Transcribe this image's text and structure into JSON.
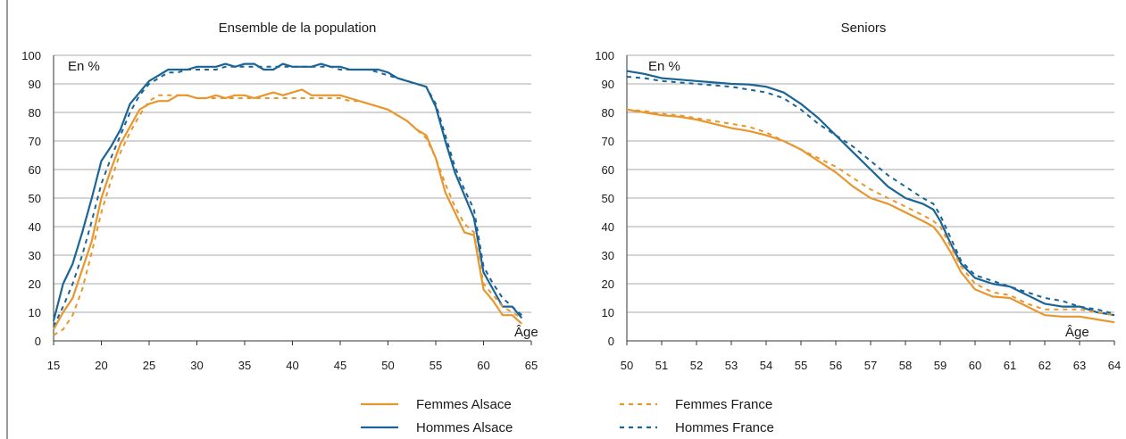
{
  "legend": [
    {
      "label": "Femmes Alsace",
      "color": "#e8962e",
      "dash": false
    },
    {
      "label": "Femmes France",
      "color": "#e8962e",
      "dash": true
    },
    {
      "label": "Hommes Alsace",
      "color": "#1a6496",
      "dash": false
    },
    {
      "label": "Hommes France",
      "color": "#1a6496",
      "dash": true
    }
  ],
  "chart_data": [
    {
      "type": "line",
      "title": "Ensemble de la population",
      "ylabel": "En %",
      "xlabel": "Âge",
      "xlim": [
        15,
        65
      ],
      "ylim": [
        0,
        100
      ],
      "xticks": [
        15,
        20,
        25,
        30,
        35,
        40,
        45,
        50,
        55,
        60,
        65
      ],
      "yticks": [
        0,
        10,
        20,
        30,
        40,
        50,
        60,
        70,
        80,
        90,
        100
      ],
      "grid": "horizontal",
      "series": [
        {
          "name": "Hommes Alsace",
          "color": "#1a6496",
          "dash": false,
          "x": [
            15,
            16,
            17,
            18,
            19,
            20,
            21,
            22,
            23,
            24,
            25,
            26,
            27,
            28,
            29,
            30,
            31,
            32,
            33,
            34,
            35,
            36,
            37,
            38,
            39,
            40,
            41,
            42,
            43,
            44,
            45,
            46,
            47,
            48,
            49,
            50,
            51,
            52,
            53,
            54,
            55,
            56,
            57,
            58,
            59,
            60,
            61,
            62,
            63,
            64
          ],
          "y": [
            7,
            20,
            27,
            38,
            50,
            63,
            68,
            74,
            83,
            87,
            91,
            93,
            95,
            95,
            95,
            96,
            96,
            96,
            97,
            96,
            97,
            97,
            95,
            95,
            97,
            96,
            96,
            96,
            97,
            96,
            96,
            95,
            95,
            95,
            95,
            94,
            92,
            91,
            90,
            89,
            82,
            70,
            59,
            51,
            43,
            24,
            18,
            12,
            12,
            8
          ]
        },
        {
          "name": "Hommes France",
          "color": "#1a6496",
          "dash": true,
          "x": [
            15,
            16,
            17,
            18,
            19,
            20,
            21,
            22,
            23,
            24,
            25,
            26,
            27,
            28,
            29,
            30,
            31,
            32,
            33,
            34,
            35,
            36,
            37,
            38,
            39,
            40,
            41,
            42,
            43,
            44,
            45,
            46,
            47,
            48,
            49,
            50,
            51,
            52,
            53,
            54,
            55,
            56,
            57,
            58,
            59,
            60,
            61,
            62,
            63,
            64
          ],
          "y": [
            5,
            12,
            20,
            30,
            42,
            55,
            64,
            72,
            80,
            86,
            90,
            92,
            94,
            94,
            95,
            95,
            95,
            95,
            96,
            96,
            96,
            96,
            96,
            96,
            96,
            96,
            96,
            96,
            96,
            96,
            95,
            95,
            95,
            95,
            94,
            93,
            92,
            91,
            90,
            89,
            83,
            72,
            61,
            53,
            46,
            26,
            20,
            15,
            12,
            9
          ]
        },
        {
          "name": "Femmes Alsace",
          "color": "#e8962e",
          "dash": false,
          "x": [
            15,
            16,
            17,
            18,
            19,
            20,
            21,
            22,
            23,
            24,
            25,
            26,
            27,
            28,
            29,
            30,
            31,
            32,
            33,
            34,
            35,
            36,
            37,
            38,
            39,
            40,
            41,
            42,
            43,
            44,
            45,
            46,
            47,
            48,
            49,
            50,
            51,
            52,
            53,
            54,
            55,
            56,
            57,
            58,
            59,
            60,
            61,
            62,
            63,
            64
          ],
          "y": [
            4,
            10,
            15,
            25,
            35,
            50,
            60,
            69,
            75,
            81,
            83,
            84,
            84,
            86,
            86,
            85,
            85,
            86,
            85,
            86,
            86,
            85,
            86,
            87,
            86,
            87,
            88,
            86,
            86,
            86,
            86,
            85,
            84,
            83,
            82,
            81,
            79,
            77,
            74,
            72,
            64,
            52,
            45,
            38,
            37,
            18,
            14,
            9,
            9,
            6
          ]
        },
        {
          "name": "Femmes France",
          "color": "#e8962e",
          "dash": true,
          "x": [
            15,
            16,
            17,
            18,
            19,
            20,
            21,
            22,
            23,
            24,
            25,
            26,
            27,
            28,
            29,
            30,
            31,
            32,
            33,
            34,
            35,
            36,
            37,
            38,
            39,
            40,
            41,
            42,
            43,
            44,
            45,
            46,
            47,
            48,
            49,
            50,
            51,
            52,
            53,
            54,
            55,
            56,
            57,
            58,
            59,
            60,
            61,
            62,
            63,
            64
          ],
          "y": [
            2,
            4,
            9,
            18,
            31,
            45,
            56,
            66,
            73,
            79,
            84,
            86,
            86,
            86,
            86,
            85,
            85,
            85,
            85,
            85,
            85,
            85,
            85,
            85,
            85,
            85,
            85,
            85,
            85,
            85,
            85,
            84,
            84,
            83,
            82,
            81,
            79,
            77,
            74,
            71,
            64,
            55,
            47,
            41,
            38,
            20,
            16,
            12,
            10,
            8
          ]
        }
      ]
    },
    {
      "type": "line",
      "title": "Seniors",
      "ylabel": "En %",
      "xlabel": "Âge",
      "xlim": [
        50,
        64
      ],
      "ylim": [
        0,
        100
      ],
      "xticks": [
        50,
        51,
        52,
        53,
        54,
        55,
        56,
        57,
        58,
        59,
        60,
        61,
        62,
        63,
        64
      ],
      "yticks": [
        0,
        10,
        20,
        30,
        40,
        50,
        60,
        70,
        80,
        90,
        100
      ],
      "grid": "horizontal",
      "series": [
        {
          "name": "Hommes Alsace",
          "color": "#1a6496",
          "dash": false,
          "x": [
            50,
            50.5,
            51,
            51.5,
            52,
            52.5,
            53,
            53.5,
            54,
            54.5,
            55,
            55.5,
            56,
            56.5,
            57,
            57.5,
            58,
            58.5,
            58.8,
            59,
            59.3,
            59.6,
            60,
            60.5,
            61,
            61.5,
            62,
            62.5,
            63,
            63.5,
            64
          ],
          "y": [
            94.5,
            93.5,
            92,
            91.5,
            91,
            90.5,
            90,
            89.8,
            89,
            87,
            83,
            78,
            72,
            66,
            60,
            54,
            50,
            48,
            46,
            42,
            34,
            27,
            22,
            20,
            19,
            16,
            13,
            12,
            12,
            10,
            9
          ]
        },
        {
          "name": "Hommes France",
          "color": "#1a6496",
          "dash": true,
          "x": [
            50,
            50.5,
            51,
            51.5,
            52,
            52.5,
            53,
            53.5,
            54,
            54.5,
            55,
            55.5,
            56,
            56.5,
            57,
            57.5,
            58,
            58.5,
            58.8,
            59,
            59.3,
            59.6,
            60,
            60.5,
            61,
            61.5,
            62,
            62.5,
            63,
            63.5,
            64
          ],
          "y": [
            92.5,
            92,
            91,
            90.5,
            90,
            89.5,
            89,
            88,
            87,
            85,
            81,
            76,
            72,
            68,
            63,
            58,
            54,
            50,
            48,
            44,
            36,
            28,
            23,
            21,
            19,
            17,
            15,
            14,
            12,
            11,
            9.5
          ]
        },
        {
          "name": "Femmes Alsace",
          "color": "#e8962e",
          "dash": false,
          "x": [
            50,
            50.5,
            51,
            51.5,
            52,
            52.5,
            53,
            53.5,
            54,
            54.5,
            55,
            55.5,
            56,
            56.5,
            57,
            57.5,
            58,
            58.5,
            58.8,
            59,
            59.3,
            59.6,
            60,
            60.5,
            61,
            61.5,
            62,
            62.5,
            63,
            63.5,
            64
          ],
          "y": [
            81,
            80,
            79,
            78.5,
            77.5,
            76,
            74.5,
            73.5,
            72,
            70,
            67,
            63,
            59,
            54,
            50,
            48,
            45,
            42,
            40,
            37,
            31,
            24,
            18,
            15.5,
            15,
            12,
            9,
            8.5,
            8.5,
            7.5,
            6.5
          ]
        },
        {
          "name": "Femmes France",
          "color": "#e8962e",
          "dash": true,
          "x": [
            50,
            50.5,
            51,
            51.5,
            52,
            52.5,
            53,
            53.5,
            54,
            54.5,
            55,
            55.5,
            56,
            56.5,
            57,
            57.5,
            58,
            58.5,
            58.8,
            59,
            59.3,
            59.6,
            60,
            60.5,
            61,
            61.5,
            62,
            62.5,
            63,
            63.5,
            64
          ],
          "y": [
            81,
            80.5,
            79.5,
            79,
            78,
            77,
            76,
            75,
            73,
            70,
            67,
            64,
            61,
            57,
            53,
            50,
            47,
            44,
            42,
            40,
            33,
            26,
            20,
            17,
            16,
            13,
            11,
            11,
            11,
            10,
            9
          ]
        }
      ]
    }
  ]
}
